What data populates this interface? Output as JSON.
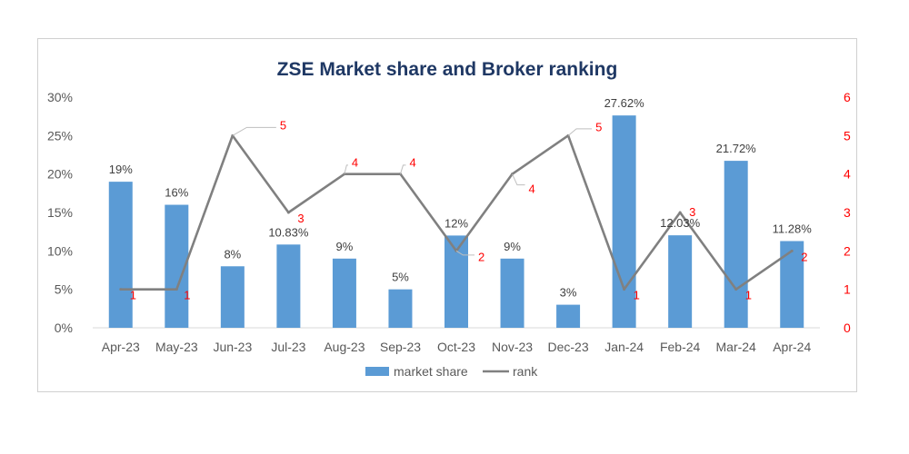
{
  "chart_data": {
    "type": "bar",
    "title": "ZSE Market share and Broker ranking",
    "categories": [
      "Apr-23",
      "May-23",
      "Jun-23",
      "Jul-23",
      "Aug-23",
      "Sep-23",
      "Oct-23",
      "Nov-23",
      "Dec-23",
      "Jan-24",
      "Feb-24",
      "Mar-24",
      "Apr-24"
    ],
    "series": [
      {
        "name": "market share",
        "type": "bar",
        "axis": "left",
        "color": "#5b9bd5",
        "values": [
          19,
          16,
          8,
          10.83,
          9,
          5,
          12,
          9,
          3,
          27.62,
          12.03,
          21.72,
          11.28
        ],
        "labels": [
          "19%",
          "16%",
          "8%",
          "10.83%",
          "9%",
          "5%",
          "12%",
          "9%",
          "3%",
          "27.62%",
          "12.03%",
          "21.72%",
          "11.28%"
        ]
      },
      {
        "name": "rank",
        "type": "line",
        "axis": "right",
        "color": "#808080",
        "label_color": "#ff0000",
        "values": [
          1,
          1,
          5,
          3,
          4,
          4,
          2,
          4,
          5,
          1,
          3,
          1,
          2
        ],
        "labels": [
          "1",
          "1",
          "5",
          "3",
          "4",
          "4",
          "2",
          "4",
          "5",
          "1",
          "3",
          "1",
          "2"
        ]
      }
    ],
    "y_left": {
      "ylim": [
        0,
        30
      ],
      "ticks": [
        "0%",
        "5%",
        "10%",
        "15%",
        "20%",
        "25%",
        "30%"
      ]
    },
    "y_right": {
      "ylim": [
        0,
        6
      ],
      "ticks": [
        "0",
        "1",
        "2",
        "3",
        "4",
        "5",
        "6"
      ],
      "color": "#ff0000"
    },
    "grid": false,
    "legend": "bottom"
  }
}
